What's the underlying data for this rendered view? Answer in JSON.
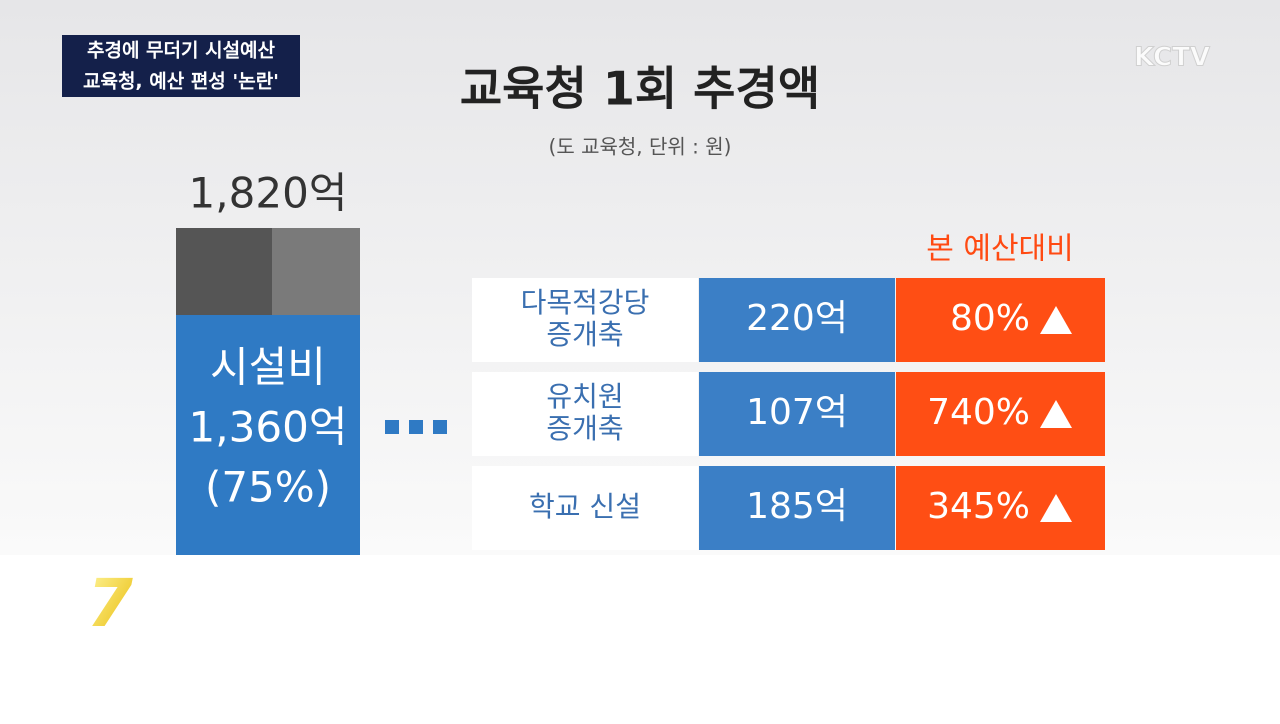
{
  "headline": {
    "line1": "추경에 무더기 시설예산",
    "line2": "교육청, 예산 편성 '논란'"
  },
  "logo": "KCTV",
  "title": "교육청 1회 추경액",
  "subtitle": "(도 교육청, 단위 : 원)",
  "total": "1,820억",
  "bar": {
    "name": "시설비",
    "amount": "1,360억",
    "share": "(75%)"
  },
  "table": {
    "header": "본 예산대비",
    "rows": [
      {
        "name": [
          "다목적강당",
          "증개축"
        ],
        "amount": "220억",
        "change": "80%"
      },
      {
        "name": [
          "유치원",
          "증개축"
        ],
        "amount": "107억",
        "change": "740%"
      },
      {
        "name": [
          "학교 신설"
        ],
        "amount": "185억",
        "change": "345%"
      }
    ]
  },
  "channel": "7"
}
